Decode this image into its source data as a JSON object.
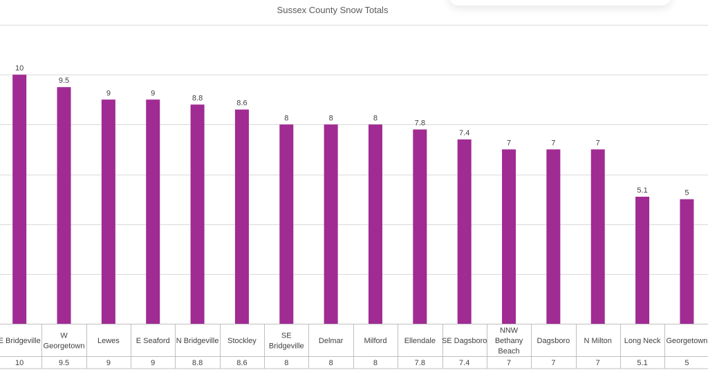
{
  "chart_data": {
    "type": "bar",
    "title": "Sussex County Snow Totals",
    "categories": [
      "E Bridgeville",
      "W Georgetown",
      "Lewes",
      "E Seaford",
      "N Bridgeville",
      "Stockley",
      "SE Bridgeville",
      "Delmar",
      "Milford",
      "Ellendale",
      "SE Dagsboro",
      "NNW Bethany Beach",
      "Dagsboro",
      "N Milton",
      "Long Neck",
      "Georgetown"
    ],
    "category_lines": [
      [
        "E Bridgeville"
      ],
      [
        "W",
        "Georgetown"
      ],
      [
        "Lewes"
      ],
      [
        "E Seaford"
      ],
      [
        "N Bridgeville"
      ],
      [
        "Stockley"
      ],
      [
        "SE",
        "Bridgeville"
      ],
      [
        "Delmar"
      ],
      [
        "Milford"
      ],
      [
        "Ellendale"
      ],
      [
        "SE Dagsboro"
      ],
      [
        "NNW",
        "Bethany",
        "Beach"
      ],
      [
        "Dagsboro"
      ],
      [
        "N Milton"
      ],
      [
        "Long Neck"
      ],
      [
        "Georgetown"
      ]
    ],
    "values": [
      10,
      9.5,
      9,
      9,
      8.8,
      8.6,
      8,
      8,
      8,
      7.8,
      7.4,
      7,
      7,
      7,
      5.1,
      5
    ],
    "value_labels": [
      "10",
      "9.5",
      "9",
      "9",
      "8.8",
      "8.6",
      "8",
      "8",
      "8",
      "7.8",
      "7.4",
      "7",
      "7",
      "7",
      "5.1",
      "5"
    ],
    "ylim": [
      0,
      12
    ],
    "ytick_step": 2,
    "grid": true,
    "data_table": true,
    "bar_color": "#A02B93",
    "grid_color": "#D9D9D9",
    "xlabel": "",
    "ylabel": ""
  }
}
